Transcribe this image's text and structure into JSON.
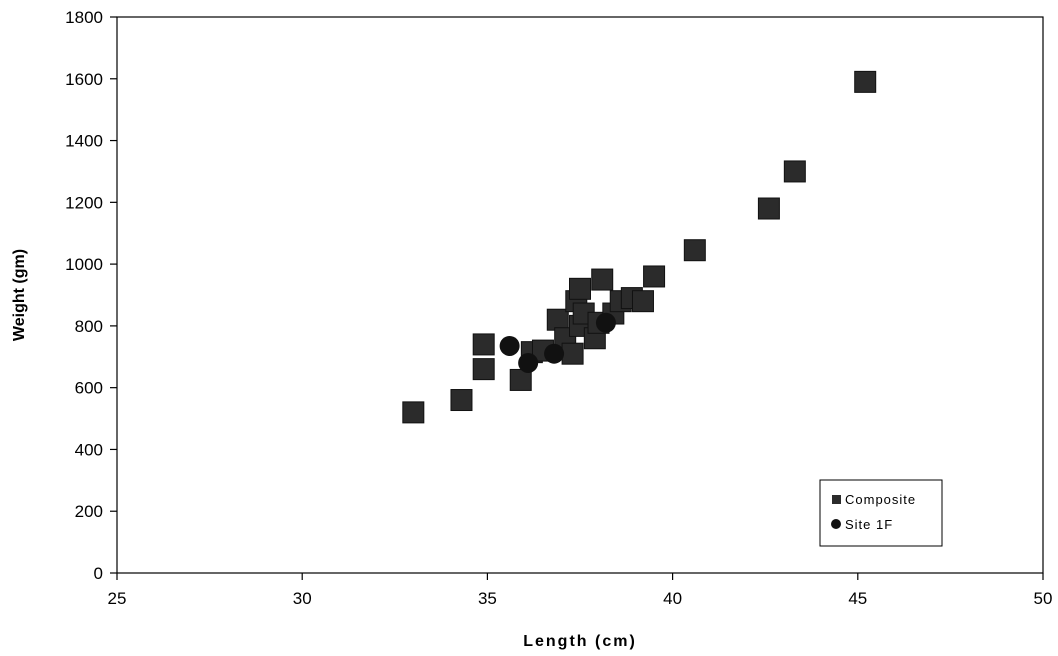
{
  "chart_data": {
    "type": "scatter",
    "xlabel": "Length (cm)",
    "ylabel": "Weight (gm)",
    "xlim": [
      25,
      50
    ],
    "ylim": [
      0,
      1800
    ],
    "x_ticks": [
      25,
      30,
      35,
      40,
      45,
      50
    ],
    "y_ticks": [
      0,
      200,
      400,
      600,
      800,
      1000,
      1200,
      1400,
      1600,
      1800
    ],
    "grid": false,
    "legend_position": "bottom-right",
    "series": [
      {
        "name": "Composite",
        "marker": "square",
        "color": "#2b2b2b",
        "points": [
          [
            33.0,
            520
          ],
          [
            34.3,
            560
          ],
          [
            34.9,
            660
          ],
          [
            34.9,
            740
          ],
          [
            35.9,
            625
          ],
          [
            36.2,
            715
          ],
          [
            36.5,
            720
          ],
          [
            36.9,
            820
          ],
          [
            37.1,
            760
          ],
          [
            37.3,
            710
          ],
          [
            37.4,
            880
          ],
          [
            37.5,
            800
          ],
          [
            37.5,
            920
          ],
          [
            37.6,
            840
          ],
          [
            37.9,
            760
          ],
          [
            38.0,
            810
          ],
          [
            38.1,
            950
          ],
          [
            38.4,
            840
          ],
          [
            38.6,
            880
          ],
          [
            38.9,
            890
          ],
          [
            39.2,
            880
          ],
          [
            39.5,
            960
          ],
          [
            40.6,
            1045
          ],
          [
            42.6,
            1180
          ],
          [
            43.3,
            1300
          ],
          [
            45.2,
            1590
          ]
        ]
      },
      {
        "name": "Site 1F",
        "marker": "circle",
        "color": "#111111",
        "points": [
          [
            35.6,
            735
          ],
          [
            36.1,
            680
          ],
          [
            36.8,
            710
          ],
          [
            38.2,
            810
          ]
        ]
      }
    ]
  }
}
